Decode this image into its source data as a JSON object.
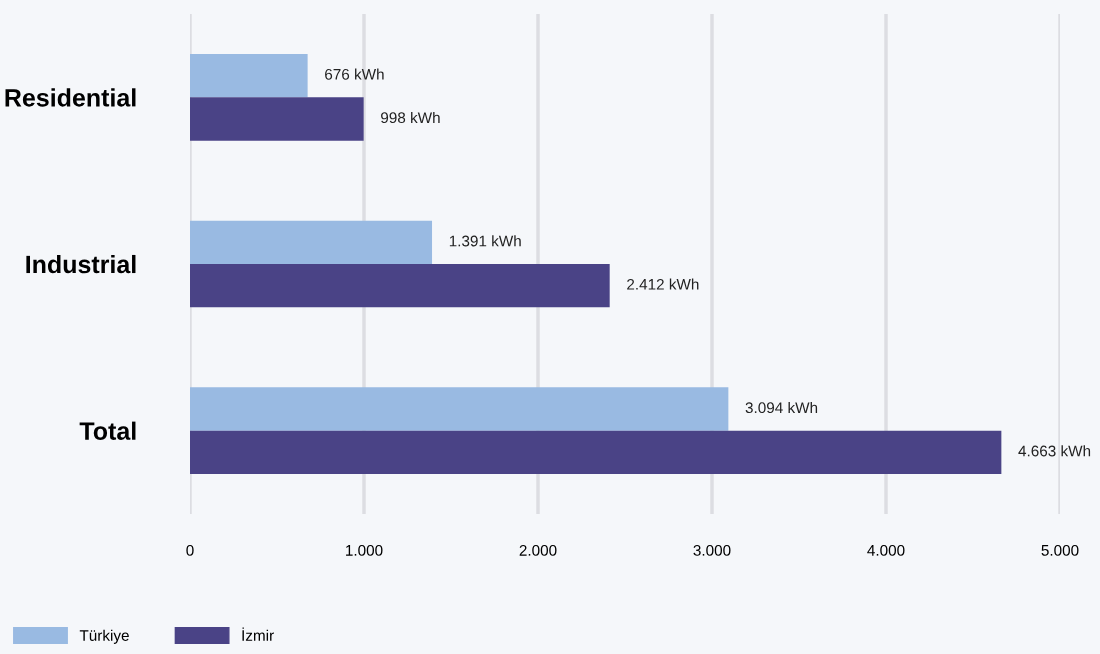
{
  "chart_data": {
    "type": "bar",
    "orientation": "horizontal",
    "categories": [
      "Residential",
      "Industrial",
      "Total"
    ],
    "series": [
      {
        "name": "Türkiye",
        "color": "#99bae2",
        "values": [
          676,
          1391,
          3094
        ],
        "value_labels": [
          "676 kWh",
          "1.391 kWh",
          "3.094 kWh"
        ]
      },
      {
        "name": "İzmir",
        "color": "#4a4386",
        "values": [
          998,
          2412,
          4663
        ],
        "value_labels": [
          "998 kWh",
          "2.412 kWh",
          "4.663 kWh"
        ]
      }
    ],
    "xlim": [
      0,
      5000
    ],
    "xticks": [
      0,
      {
        "value": 1000,
        "label": "1.000"
      },
      {
        "value": 2000,
        "label": "2.000"
      },
      {
        "value": 3000,
        "label": "3.000"
      },
      {
        "value": 4000,
        "label": "4.000"
      },
      {
        "value": 5000,
        "label": "5.000"
      }
    ],
    "grid": "x",
    "legend": "bottom left"
  }
}
